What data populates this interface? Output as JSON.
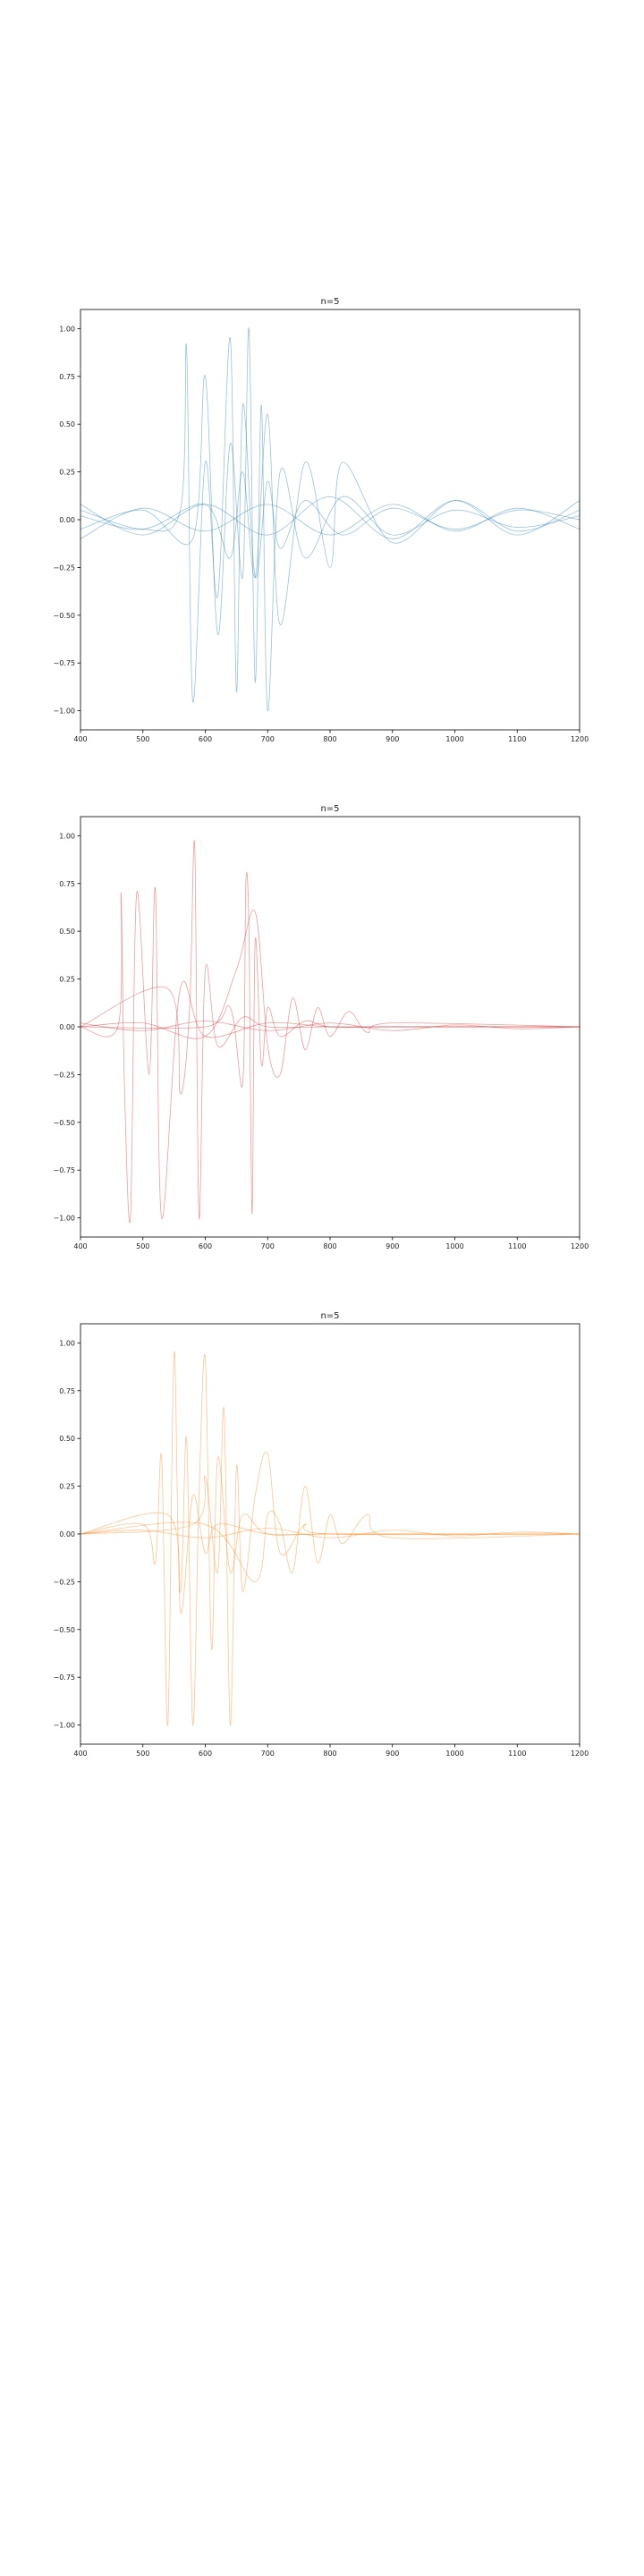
{
  "chart_data": [
    {
      "type": "line",
      "title": "n=5",
      "color": "#1f77b4",
      "xlim": [
        400,
        1200
      ],
      "ylim": [
        -1.1,
        1.1
      ],
      "xticks": [
        "400",
        "500",
        "600",
        "700",
        "800",
        "900",
        "1000",
        "1100",
        "1200"
      ],
      "yticks": [
        "1.00",
        "0.75",
        "0.50",
        "0.25",
        "0.00",
        "−0.25",
        "−0.50",
        "−0.75",
        "−1.00"
      ],
      "series": [
        {
          "x": [
            400,
            500,
            560,
            570,
            580,
            600,
            620,
            640,
            650,
            660,
            680,
            700,
            720,
            760,
            820,
            900,
            1000,
            1100,
            1200
          ],
          "y": [
            0.05,
            -0.05,
            0.05,
            0.9,
            -0.95,
            0.3,
            -0.4,
            0.95,
            -0.9,
            0.6,
            -0.3,
            0.2,
            -0.15,
            0.1,
            -0.08,
            0.06,
            -0.05,
            0.05,
            0.0
          ]
        },
        {
          "x": [
            400,
            500,
            580,
            600,
            620,
            640,
            660,
            670,
            680,
            690,
            700,
            720,
            760,
            820,
            900,
            1000,
            1100,
            1200
          ],
          "y": [
            -0.05,
            0.05,
            -0.1,
            0.75,
            -0.6,
            0.4,
            -0.3,
            1.0,
            -0.85,
            0.6,
            -1.0,
            0.25,
            -0.2,
            0.12,
            -0.08,
            0.05,
            -0.04,
            0.02
          ]
        },
        {
          "x": [
            400,
            500,
            600,
            640,
            660,
            680,
            700,
            720,
            760,
            800,
            820,
            900,
            1000,
            1100,
            1200
          ],
          "y": [
            0.02,
            -0.05,
            0.08,
            -0.2,
            0.25,
            -0.3,
            0.55,
            -0.55,
            0.3,
            -0.25,
            0.3,
            -0.12,
            0.1,
            -0.06,
            0.05
          ]
        },
        {
          "x": [
            400,
            500,
            600,
            700,
            800,
            900,
            1000,
            1100,
            1200
          ],
          "y": [
            0.08,
            -0.08,
            0.08,
            -0.08,
            0.12,
            -0.1,
            0.1,
            -0.08,
            0.1
          ]
        },
        {
          "x": [
            400,
            500,
            600,
            700,
            800,
            900,
            1000,
            1100,
            1200
          ],
          "y": [
            -0.1,
            0.06,
            -0.06,
            0.08,
            -0.08,
            0.08,
            -0.06,
            0.06,
            -0.05
          ]
        }
      ]
    },
    {
      "type": "line",
      "title": "n=5",
      "color": "#d62728",
      "xlim": [
        400,
        1200
      ],
      "ylim": [
        -1.1,
        1.1
      ],
      "xticks": [
        "400",
        "500",
        "600",
        "700",
        "800",
        "900",
        "1000",
        "1100",
        "1200"
      ],
      "yticks": [
        "1.00",
        "0.75",
        "0.50",
        "0.25",
        "0.00",
        "−0.25",
        "−0.50",
        "−0.75",
        "−1.00"
      ],
      "series": [
        {
          "x": [
            400,
            460,
            465,
            470,
            480,
            490,
            510,
            520,
            530,
            560,
            600,
            700,
            800,
            900,
            1000,
            1200
          ],
          "y": [
            0.0,
            0.0,
            0.7,
            -0.25,
            -1.0,
            0.7,
            -0.25,
            0.72,
            -1.0,
            0.2,
            -0.05,
            0.02,
            0.0,
            0.0,
            0.0,
            0.0
          ]
        },
        {
          "x": [
            400,
            540,
            560,
            575,
            583,
            590,
            600,
            620,
            660,
            700,
            800,
            900,
            1200
          ],
          "y": [
            0.0,
            0.2,
            -0.35,
            0.1,
            0.95,
            -1.0,
            0.3,
            -0.1,
            0.05,
            0.0,
            0.0,
            0.0,
            0.0
          ]
        },
        {
          "x": [
            400,
            600,
            640,
            660,
            665,
            670,
            675,
            680,
            690,
            700,
            720,
            760,
            800,
            900,
            1200
          ],
          "y": [
            0.0,
            0.0,
            0.1,
            -0.3,
            0.75,
            0.5,
            -0.98,
            0.45,
            -0.2,
            0.1,
            -0.05,
            0.03,
            0.0,
            0.0,
            0.0
          ]
        },
        {
          "x": [
            400,
            500,
            600,
            650,
            680,
            700,
            720,
            740,
            760,
            780,
            800,
            830,
            860,
            900,
            1200
          ],
          "y": [
            0.0,
            0.02,
            -0.05,
            0.3,
            0.6,
            -0.1,
            -0.25,
            0.15,
            -0.12,
            0.1,
            -0.05,
            0.08,
            -0.03,
            0.02,
            0.0
          ]
        },
        {
          "x": [
            400,
            500,
            600,
            700,
            800,
            900,
            1000,
            1100,
            1200
          ],
          "y": [
            0.02,
            -0.02,
            0.03,
            -0.02,
            0.02,
            -0.02,
            0.01,
            -0.01,
            0.0
          ]
        }
      ]
    },
    {
      "type": "line",
      "title": "n=5",
      "color": "#ff7f0e",
      "xlim": [
        400,
        1200
      ],
      "ylim": [
        -1.1,
        1.1
      ],
      "xticks": [
        "400",
        "500",
        "600",
        "700",
        "800",
        "900",
        "1000",
        "1100",
        "1200"
      ],
      "yticks": [
        "1.00",
        "0.75",
        "0.50",
        "0.25",
        "0.00",
        "−0.25",
        "−0.50",
        "−0.75",
        "−1.00"
      ],
      "series": [
        {
          "x": [
            400,
            500,
            520,
            530,
            540,
            550,
            560,
            580,
            600,
            620,
            700,
            800,
            900,
            1200
          ],
          "y": [
            0.0,
            0.05,
            -0.15,
            0.4,
            -1.0,
            0.95,
            -0.4,
            0.2,
            -0.1,
            0.05,
            0.0,
            0.0,
            0.0,
            0.0
          ]
        },
        {
          "x": [
            400,
            540,
            560,
            570,
            580,
            590,
            600,
            610,
            620,
            640,
            660,
            700,
            800,
            1200
          ],
          "y": [
            0.0,
            0.1,
            -0.3,
            0.5,
            -1.0,
            0.2,
            0.92,
            -0.6,
            0.4,
            -0.2,
            0.1,
            0.0,
            0.0,
            0.0
          ]
        },
        {
          "x": [
            400,
            580,
            600,
            620,
            630,
            640,
            650,
            660,
            680,
            700,
            720,
            760,
            800,
            1200
          ],
          "y": [
            0.0,
            0.05,
            0.3,
            -0.2,
            0.65,
            -1.0,
            0.35,
            -0.3,
            0.2,
            0.42,
            -0.1,
            0.05,
            0.0,
            0.0
          ]
        },
        {
          "x": [
            400,
            600,
            680,
            700,
            720,
            740,
            760,
            780,
            800,
            820,
            860,
            900,
            1200
          ],
          "y": [
            0.0,
            0.05,
            -0.25,
            0.1,
            0.05,
            -0.2,
            0.25,
            -0.15,
            0.1,
            -0.05,
            0.1,
            -0.02,
            0.0
          ]
        },
        {
          "x": [
            400,
            500,
            600,
            700,
            800,
            900,
            1000,
            1100,
            1200
          ],
          "y": [
            0.0,
            0.02,
            -0.02,
            0.03,
            -0.02,
            0.02,
            -0.01,
            0.01,
            0.0
          ]
        }
      ]
    }
  ]
}
